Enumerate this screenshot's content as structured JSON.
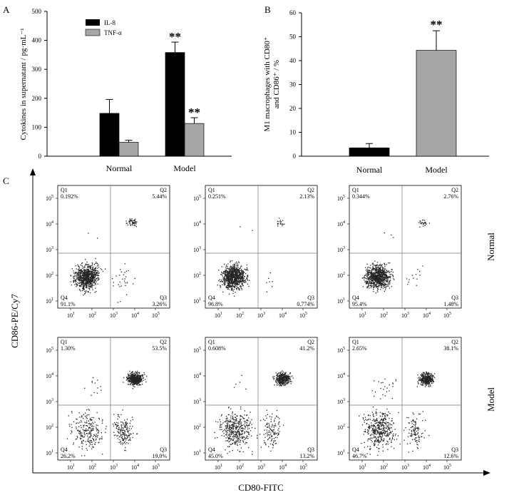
{
  "chart_data": [
    {
      "panel": "A",
      "type": "bar",
      "ylabel": "Cytokines in supernatant / pg·mL⁻¹",
      "ylim": [
        0,
        500
      ],
      "yticks": [
        0,
        100,
        200,
        300,
        400,
        500
      ],
      "categories": [
        "Normal",
        "Model"
      ],
      "series": [
        {
          "name": "IL-8",
          "color": "#000000",
          "values": [
            148,
            358
          ],
          "errors": [
            48,
            36
          ],
          "sig": [
            "",
            "**"
          ]
        },
        {
          "name": "TNF-α",
          "color": "#a6a6a6",
          "values": [
            48,
            113
          ],
          "errors": [
            7,
            20
          ],
          "sig": [
            "",
            "**"
          ]
        }
      ]
    },
    {
      "panel": "B",
      "type": "bar",
      "ylabel_line1": "M1 macrophages with CD80⁺",
      "ylabel_line2": "and CD86⁺ / %",
      "ylim": [
        0,
        60
      ],
      "yticks": [
        0,
        10,
        20,
        30,
        40,
        50,
        60
      ],
      "categories": [
        "Normal",
        "Model"
      ],
      "values": [
        3.5,
        44.3
      ],
      "errors": [
        1.8,
        8.2
      ],
      "colors": [
        "#000000",
        "#a6a6a6"
      ],
      "sig": [
        "",
        "**"
      ]
    },
    {
      "panel": "C",
      "type": "scatter",
      "xlabel": "CD80-FITC",
      "ylabel": "CD86-PE/Cy7",
      "axis_ticks": [
        "10",
        "10",
        "10",
        "10",
        "10"
      ],
      "axis_exponents": [
        "1",
        "2",
        "3",
        "4",
        "5"
      ],
      "row_labels": [
        "Normal",
        "Model"
      ],
      "quadrant_labels": [
        "Q1",
        "Q2",
        "Q3",
        "Q4"
      ],
      "plots": [
        {
          "row": 0,
          "q1": "0.192%",
          "q2": "5.44%",
          "q3": "3.26%",
          "q4": "91.1%"
        },
        {
          "row": 0,
          "q1": "0.251%",
          "q2": "2.13%",
          "q3": "0.774%",
          "q4": "96.8%"
        },
        {
          "row": 0,
          "q1": "0.344%",
          "q2": "2.76%",
          "q3": "1.48%",
          "q4": "95.4%"
        },
        {
          "row": 1,
          "q1": "1.30%",
          "q2": "53.5%",
          "q3": "19.0%",
          "q4": "26.2%"
        },
        {
          "row": 1,
          "q1": "0.608%",
          "q2": "41.2%",
          "q3": "13.2%",
          "q4": "45.0%"
        },
        {
          "row": 1,
          "q1": "2.65%",
          "q2": "38.1%",
          "q3": "12.6%",
          "q4": "46.7%"
        }
      ]
    }
  ]
}
